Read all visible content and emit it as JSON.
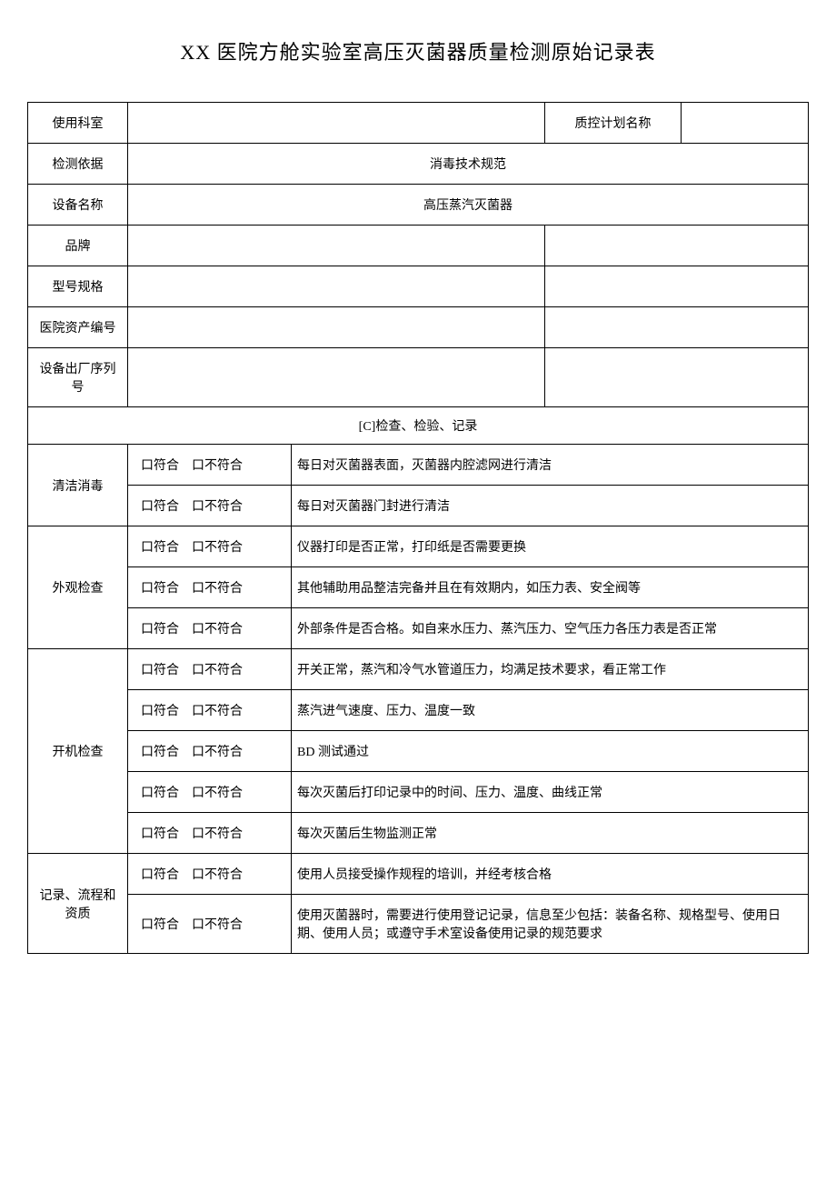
{
  "title": "XX 医院方舱实验室高压灭菌器质量检测原始记录表",
  "header": {
    "dept_label": "使用科室",
    "qc_plan_label": "质控计划名称",
    "basis_label": "检测依据",
    "basis_value": "消毒技术规范",
    "equip_name_label": "设备名称",
    "equip_name_value": "高压蒸汽灭菌器",
    "brand_label": "品牌",
    "model_label": "型号规格",
    "asset_no_label": "医院资产编号",
    "serial_label": "设备出厂序列号"
  },
  "section_header": "[C]检查、检验、记录",
  "check_labels": {
    "conform": "口符合",
    "nonconform": "口不符合"
  },
  "groups": [
    {
      "name": "清洁消毒",
      "items": [
        "每日对灭菌器表面，灭菌器内腔滤网进行清洁",
        "每日对灭菌器门封进行清洁"
      ]
    },
    {
      "name": "外观检查",
      "items": [
        "仪器打印是否正常，打印纸是否需要更换",
        "其他辅助用品整洁完备并且在有效期内，如压力表、安全阀等",
        "外部条件是否合格。如自来水压力、蒸汽压力、空气压力各压力表是否正常"
      ]
    },
    {
      "name": "开机检查",
      "items": [
        "开关正常，蒸汽和冷气水管道压力，均满足技术要求，看正常工作",
        "蒸汽进气速度、压力、温度一致",
        "BD 测试通过",
        "每次灭菌后打印记录中的时间、压力、温度、曲线正常",
        "每次灭菌后生物监测正常"
      ]
    },
    {
      "name": "记录、流程和资质",
      "items": [
        "使用人员接受操作规程的培训，并经考核合格",
        "使用灭菌器时，需要进行使用登记记录，信息至少包括：装备名称、规格型号、使用日期、使用人员；或遵守手术室设备使用记录的规范要求"
      ]
    }
  ]
}
